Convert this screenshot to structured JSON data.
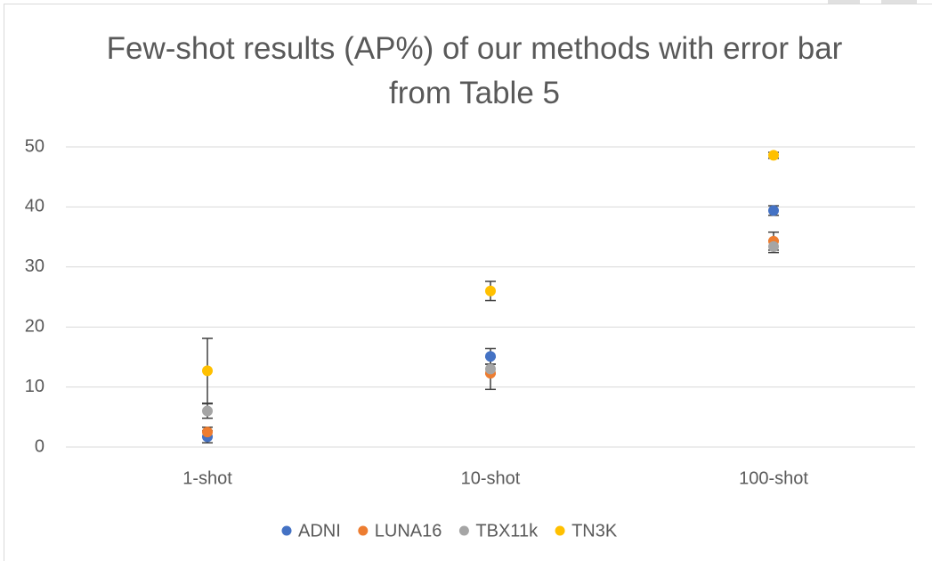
{
  "chart_data": {
    "type": "errorbar-scatter",
    "title": "Few-shot results (AP%) of our methods with error bar from Table 5",
    "categories": [
      "1-shot",
      "10-shot",
      "100-shot"
    ],
    "series": [
      {
        "name": "ADNI",
        "color": "#4472c4",
        "values": [
          1.7,
          15.1,
          39.4
        ],
        "errors": [
          1.0,
          1.3,
          0.8
        ]
      },
      {
        "name": "LUNA16",
        "color": "#ed7d31",
        "values": [
          2.5,
          12.3,
          34.3
        ],
        "errors": [
          0.8,
          2.7,
          1.5
        ]
      },
      {
        "name": "TBX11k",
        "color": "#a5a5a5",
        "values": [
          6.0,
          13.0,
          33.4
        ],
        "errors": [
          1.2,
          0.8,
          1.0
        ]
      },
      {
        "name": "TN3K",
        "color": "#ffc000",
        "values": [
          12.7,
          26.0,
          48.6
        ],
        "errors": [
          5.4,
          1.6,
          0.5
        ]
      }
    ],
    "ylim": [
      0,
      50
    ],
    "yticks": [
      0,
      10,
      20,
      30,
      40,
      50
    ],
    "grid": true,
    "legend": "bottom"
  }
}
